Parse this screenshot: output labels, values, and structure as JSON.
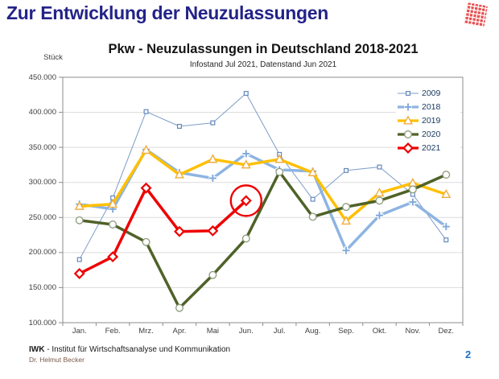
{
  "header": {
    "title": "Zur Entwicklung der Neuzulassungen",
    "title_color": "#232388",
    "logo_color": "#E85050"
  },
  "chart_data": {
    "type": "line",
    "title": "Pkw - Neuzulassungen in Deutschland 2018-2021",
    "subtitle": "Infostand Jul 2021, Datenstand Jun 2021",
    "ylabel": "Stück",
    "xlabel": "",
    "ylim": [
      100000,
      450000
    ],
    "ytick_step": 50000,
    "ytick_labels": [
      "450.000",
      "400.000",
      "350.000",
      "300.000",
      "250.000",
      "200.000",
      "150.000",
      "100.000"
    ],
    "grid": true,
    "legend_position": "inside-top-right",
    "categories": [
      "Jan.",
      "Feb.",
      "Mrz.",
      "Apr.",
      "Mai",
      "Jun.",
      "Jul.",
      "Aug.",
      "Sep.",
      "Okt.",
      "Nov.",
      "Dez."
    ],
    "series": [
      {
        "name": "2009",
        "color": "#7C9CC8",
        "marker": "square",
        "marker_stroke": "#6488BC",
        "line_width": 1,
        "values": [
          190000,
          278000,
          401000,
          380000,
          385000,
          427000,
          340000,
          276000,
          317000,
          322000,
          283000,
          218000
        ]
      },
      {
        "name": "2018",
        "color": "#8DB4E2",
        "marker": "plus",
        "marker_stroke": "#7FA8D9",
        "line_width": 3.5,
        "values": [
          269000,
          262000,
          347000,
          314000,
          306000,
          341000,
          318000,
          316000,
          203000,
          253000,
          272000,
          237000
        ]
      },
      {
        "name": "2019",
        "color": "#FFC000",
        "marker": "triangle",
        "marker_stroke": "#F0AC3C",
        "line_width": 3.5,
        "values": [
          266000,
          269000,
          346000,
          311000,
          333000,
          325000,
          333000,
          314000,
          245000,
          285000,
          299000,
          283000
        ]
      },
      {
        "name": "2020",
        "color": "#4F6228",
        "marker": "circle",
        "marker_stroke": "#8C9B7A",
        "line_width": 3.5,
        "values": [
          246000,
          240000,
          215000,
          121000,
          168000,
          220000,
          315000,
          251000,
          265000,
          274000,
          290000,
          311000
        ]
      },
      {
        "name": "2021",
        "color": "#EE0000",
        "marker": "diamond",
        "marker_stroke": "#EE0000",
        "line_width": 3.5,
        "values": [
          170000,
          194000,
          292000,
          230000,
          231000,
          274000,
          null,
          null,
          null,
          null,
          null,
          null
        ]
      }
    ],
    "annotation": {
      "type": "circle-highlight",
      "series": "2021",
      "category": "Jun.",
      "value": 274000,
      "color": "#EE0000"
    }
  },
  "footer": {
    "org_abbr": "IWK",
    "org_sep": "  -  ",
    "org_name": "Institut für Wirtschaftsanalyse und Kommunikation",
    "author": "Dr. Helmut Becker",
    "page_number": "2"
  }
}
